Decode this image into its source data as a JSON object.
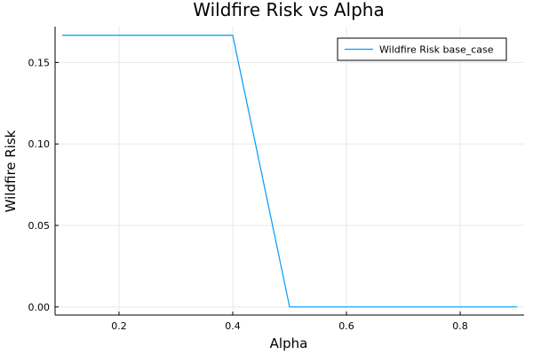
{
  "chart_data": {
    "type": "line",
    "title": "Wildfire Risk vs Alpha",
    "xlabel": "Alpha",
    "ylabel": "Wildfire Risk",
    "xlim": [
      0.0876,
      0.9124
    ],
    "ylim": [
      -0.005,
      0.172
    ],
    "xticks": [
      0.2,
      0.4,
      0.6,
      0.8
    ],
    "xtick_labels": [
      "0.2",
      "0.4",
      "0.6",
      "0.8"
    ],
    "yticks": [
      0.0,
      0.05,
      0.1,
      0.15
    ],
    "ytick_labels": [
      "0.00",
      "0.05",
      "0.10",
      "0.15"
    ],
    "grid": true,
    "legend_position": "top-right",
    "series": [
      {
        "name": "Wildfire Risk base_case",
        "color": "#009af9",
        "x": [
          0.1,
          0.2,
          0.3,
          0.4,
          0.5,
          0.6,
          0.7,
          0.8,
          0.9
        ],
        "y": [
          0.1667,
          0.1667,
          0.1667,
          0.1667,
          0.0,
          0.0,
          0.0,
          0.0,
          0.0
        ]
      }
    ]
  }
}
